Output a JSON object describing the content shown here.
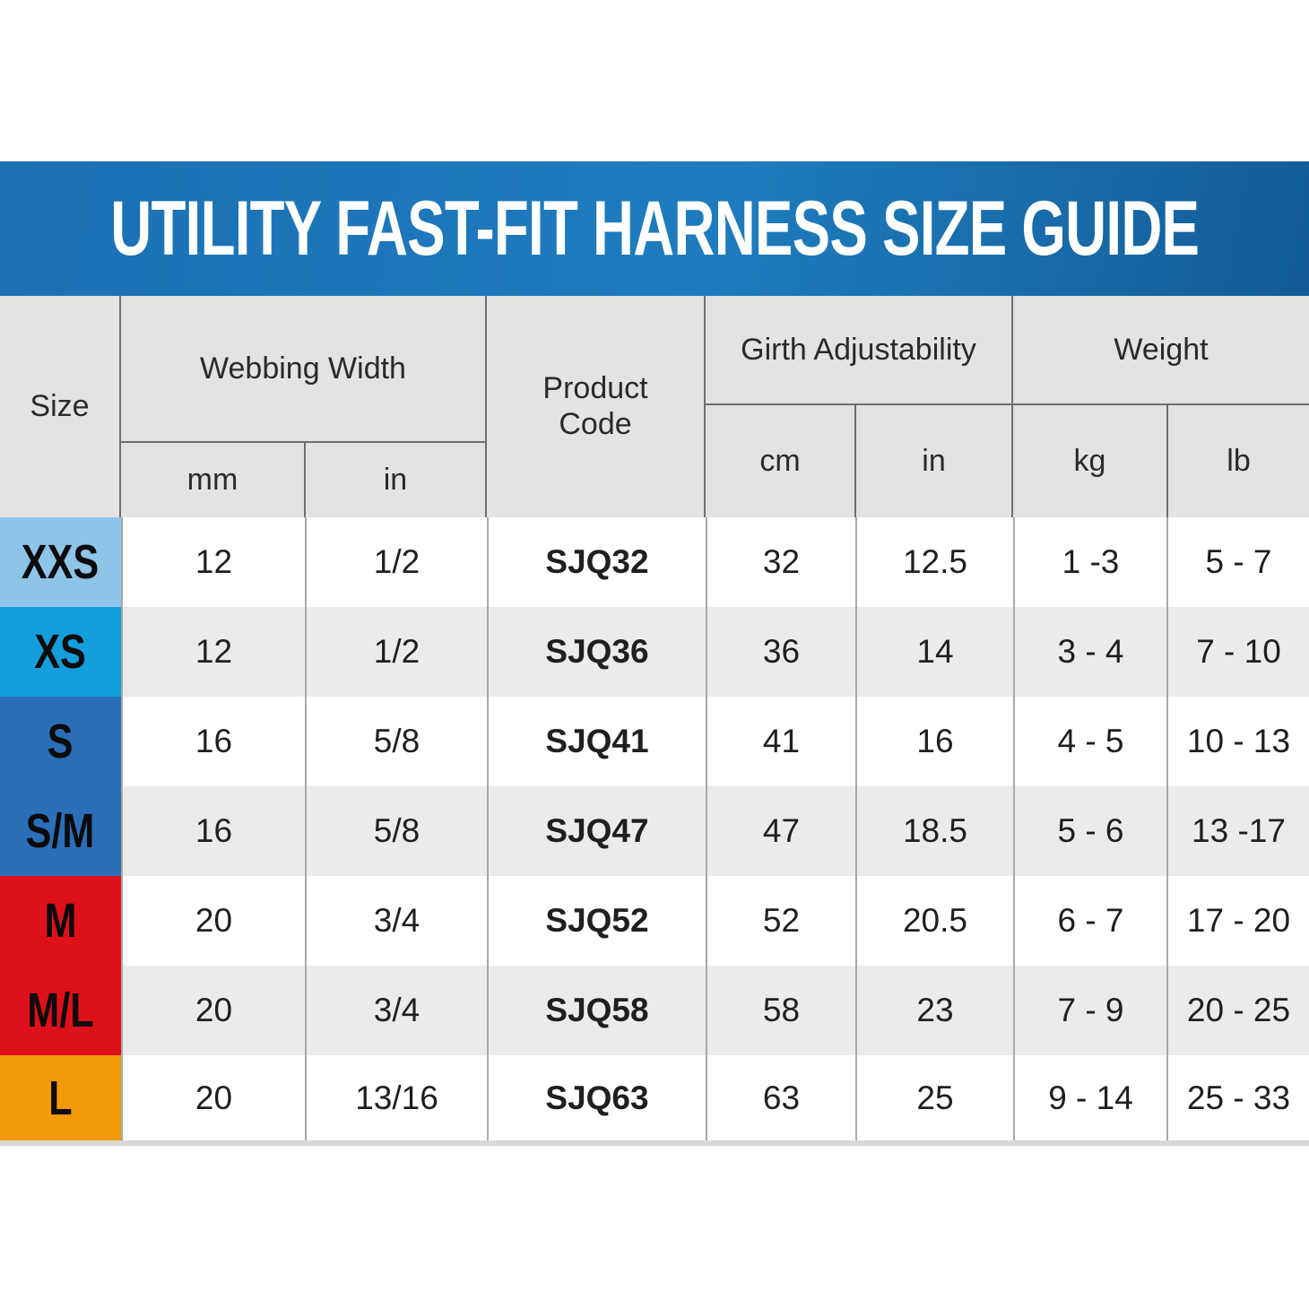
{
  "banner": {
    "title": "UTILITY FAST-FIT HARNESS SIZE GUIDE",
    "bg_color_left": "#1C70B4",
    "bg_color_right": "#135C97",
    "text_color": "#FFFFFF"
  },
  "table": {
    "header": {
      "size": "Size",
      "webbing": "Webbing Width",
      "webbing_units": {
        "mm": "mm",
        "in": "in"
      },
      "product": "Product Code",
      "girth": "Girth Adjustability",
      "girth_units": {
        "cm": "cm",
        "in": "in"
      },
      "weight": "Weight",
      "weight_units": {
        "kg": "kg",
        "lb": "lb"
      }
    },
    "rows": [
      {
        "size": "XXS",
        "color": "#8FC4E9",
        "webbing_mm": "12",
        "webbing_in": "1/2",
        "product_code": "SJQ32",
        "girth_cm": "32",
        "girth_in": "12.5",
        "weight_kg": "1 -3",
        "weight_lb": "5 - 7"
      },
      {
        "size": "XS",
        "color": "#129FDC",
        "webbing_mm": "12",
        "webbing_in": "1/2",
        "product_code": "SJQ36",
        "girth_cm": "36",
        "girth_in": "14",
        "weight_kg": "3 - 4",
        "weight_lb": "7 - 10"
      },
      {
        "size": "S",
        "color": "#2A6FB8",
        "webbing_mm": "16",
        "webbing_in": "5/8",
        "product_code": "SJQ41",
        "girth_cm": "41",
        "girth_in": "16",
        "weight_kg": "4 - 5",
        "weight_lb": "10 - 13"
      },
      {
        "size": "S/M",
        "color": "#2A6FB8",
        "webbing_mm": "16",
        "webbing_in": "5/8",
        "product_code": "SJQ47",
        "girth_cm": "47",
        "girth_in": "18.5",
        "weight_kg": "5 - 6",
        "weight_lb": "13 -17"
      },
      {
        "size": "M",
        "color": "#DE1019",
        "webbing_mm": "20",
        "webbing_in": "3/4",
        "product_code": "SJQ52",
        "girth_cm": "52",
        "girth_in": "20.5",
        "weight_kg": "6 - 7",
        "weight_lb": "17 - 20"
      },
      {
        "size": "M/L",
        "color": "#DE1019",
        "webbing_mm": "20",
        "webbing_in": "3/4",
        "product_code": "SJQ58",
        "girth_cm": "58",
        "girth_in": "23",
        "weight_kg": "7 - 9",
        "weight_lb": "20 - 25"
      },
      {
        "size": "L",
        "color": "#F49A08",
        "webbing_mm": "20",
        "webbing_in": "13/16",
        "product_code": "SJQ63",
        "girth_cm": "63",
        "girth_in": "25",
        "weight_kg": "9 - 14",
        "weight_lb": "25 - 33"
      }
    ]
  },
  "chart_data": {
    "type": "table",
    "title": "UTILITY FAST-FIT HARNESS SIZE GUIDE",
    "columns": [
      "Size",
      "Webbing Width (mm)",
      "Webbing Width (in)",
      "Product Code",
      "Girth Adjustability (cm)",
      "Girth Adjustability (in)",
      "Weight (kg)",
      "Weight (lb)"
    ],
    "rows": [
      [
        "XXS",
        "12",
        "1/2",
        "SJQ32",
        "32",
        "12.5",
        "1 -3",
        "5 - 7"
      ],
      [
        "XS",
        "12",
        "1/2",
        "SJQ36",
        "36",
        "14",
        "3 - 4",
        "7 - 10"
      ],
      [
        "S",
        "16",
        "5/8",
        "SJQ41",
        "41",
        "16",
        "4 - 5",
        "10 - 13"
      ],
      [
        "S/M",
        "16",
        "5/8",
        "SJQ47",
        "47",
        "18.5",
        "5 - 6",
        "13 -17"
      ],
      [
        "M",
        "20",
        "3/4",
        "SJQ52",
        "52",
        "20.5",
        "6 - 7",
        "17 - 20"
      ],
      [
        "M/L",
        "20",
        "3/4",
        "SJQ58",
        "58",
        "23",
        "7 - 9",
        "20 - 25"
      ],
      [
        "L",
        "20",
        "13/16",
        "SJQ63",
        "63",
        "25",
        "9 - 14",
        "25 - 33"
      ]
    ]
  }
}
